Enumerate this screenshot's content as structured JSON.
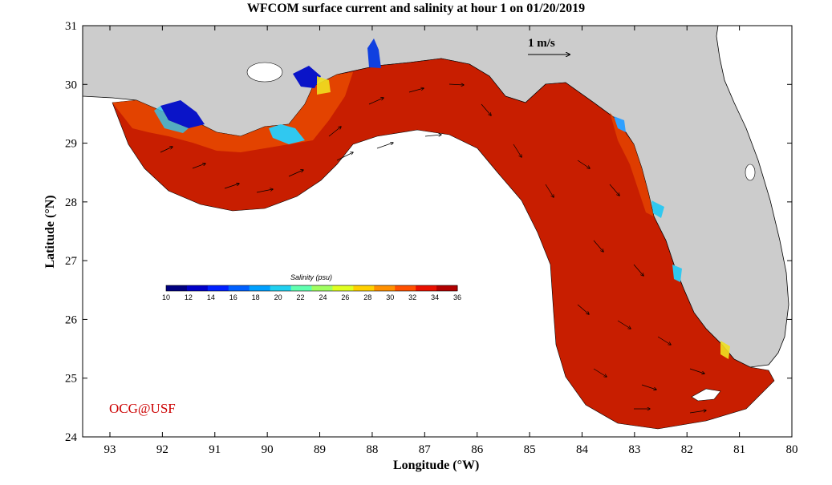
{
  "title": "WFCOM surface current and salinity at hour 1 on 01/20/2019",
  "x_axis": {
    "label": "Longitude (°W)",
    "ticks": [
      "93",
      "92",
      "91",
      "90",
      "89",
      "88",
      "87",
      "86",
      "85",
      "84",
      "83",
      "82",
      "81",
      "80"
    ]
  },
  "y_axis": {
    "label": "Latitude (°N)",
    "ticks": [
      "24",
      "25",
      "26",
      "27",
      "28",
      "29",
      "30",
      "31"
    ]
  },
  "scale_arrow": {
    "label": "1 m/s"
  },
  "colorbar": {
    "title": "Salinity (psu)",
    "ticks": [
      "10",
      "12",
      "14",
      "16",
      "18",
      "20",
      "22",
      "24",
      "26",
      "28",
      "30",
      "32",
      "34",
      "36"
    ],
    "colors": [
      "#00007f",
      "#0000c8",
      "#0020ff",
      "#0060ff",
      "#00a0ff",
      "#20d0f0",
      "#60ffb0",
      "#a0ff60",
      "#e0ff20",
      "#ffd000",
      "#ff9000",
      "#ff5000",
      "#e81000",
      "#b00000"
    ]
  },
  "colors": {
    "land": "#cccccc",
    "ocean_dominant": "#c81e00",
    "coast_low_salinity": "#0000c8",
    "watermark": "#cc0000"
  },
  "watermark": "OCG@USF"
}
